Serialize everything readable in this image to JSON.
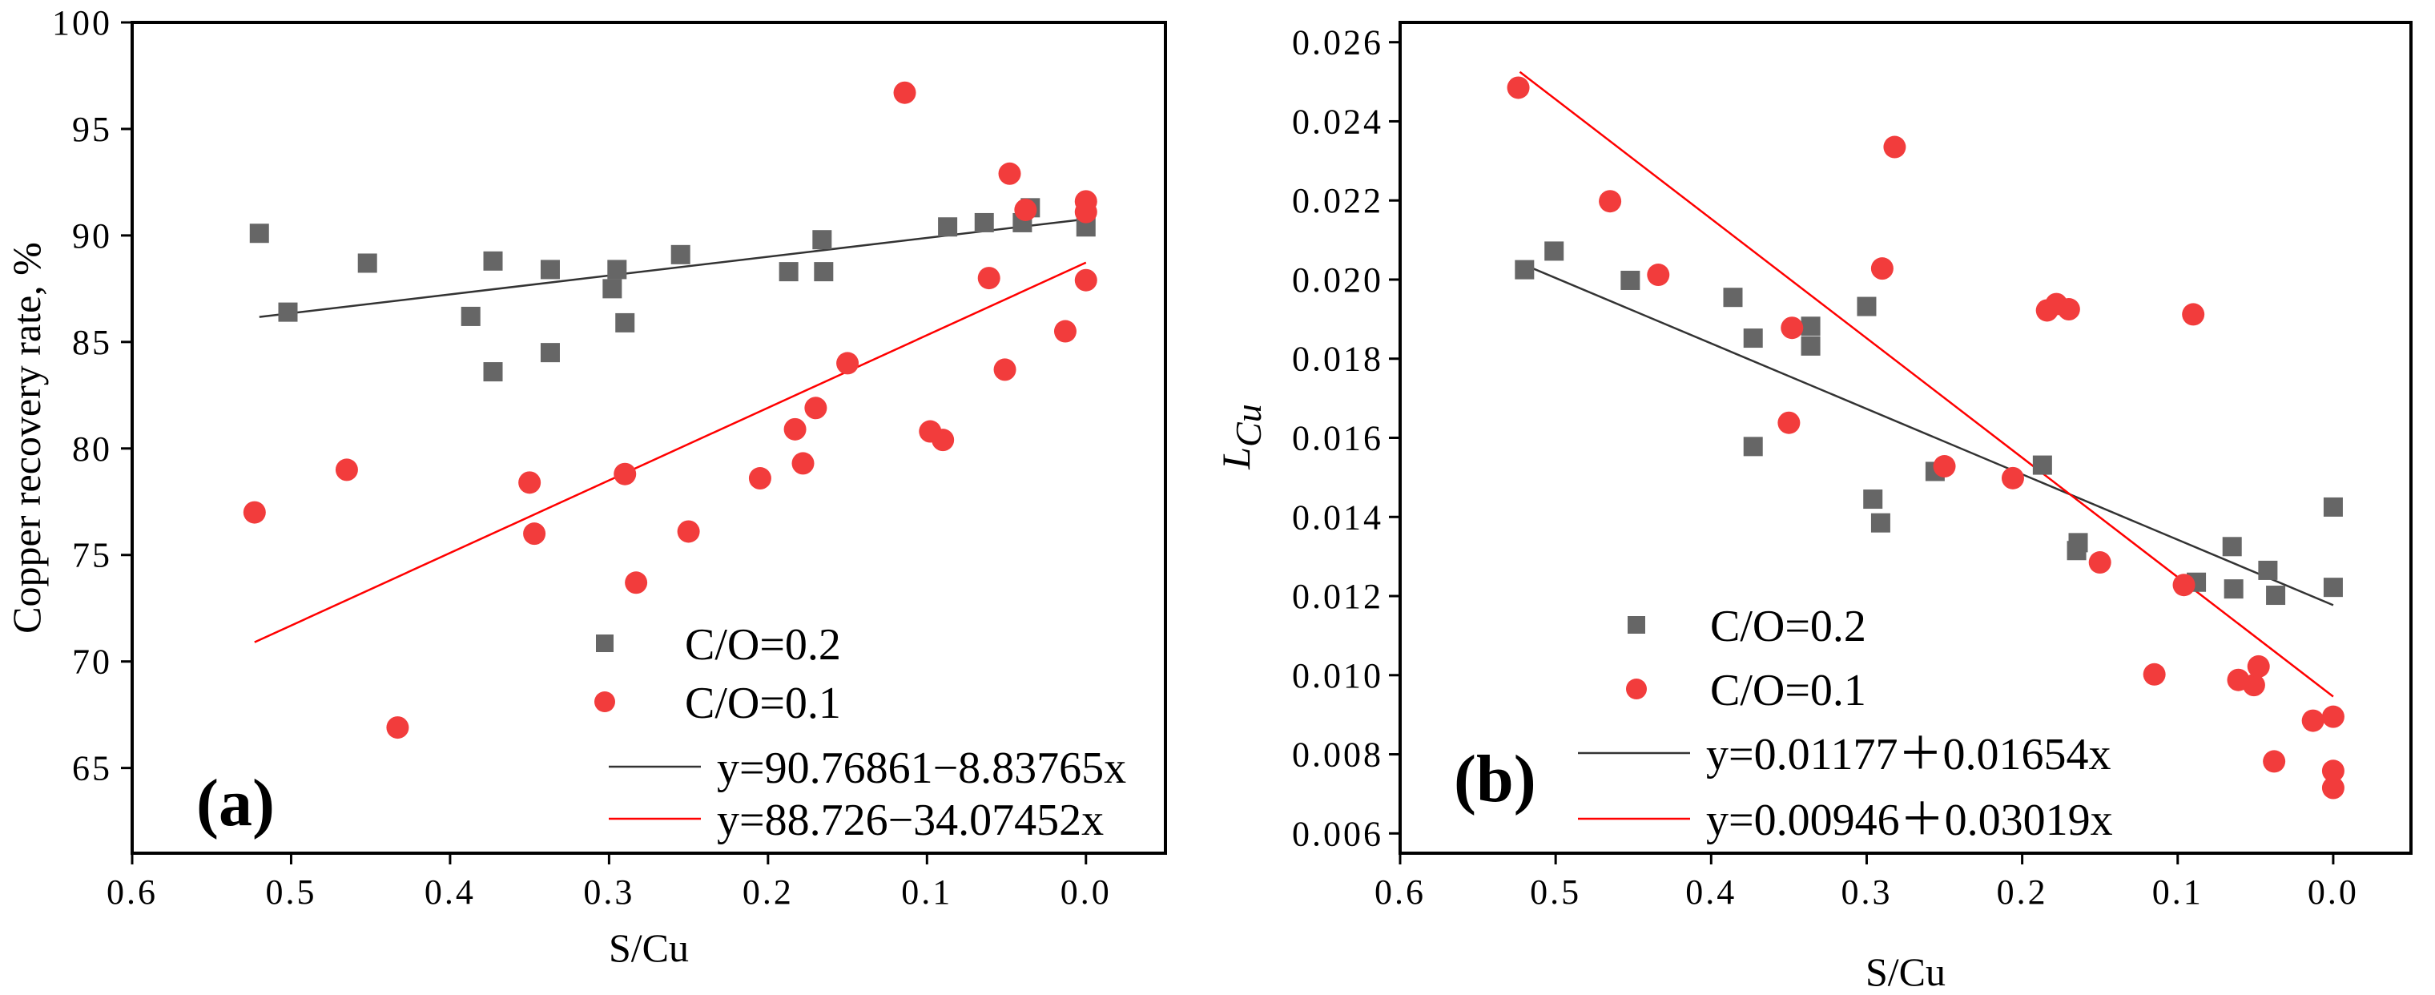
{
  "chart_data": [
    {
      "type": "scatter",
      "panel_label": "(a)",
      "xlabel": "S/Cu",
      "ylabel": "Copper recovery rate, %",
      "xlim": [
        0.6,
        -0.05
      ],
      "ylim": [
        61,
        100
      ],
      "x_reversed": true,
      "xticks": [
        0.6,
        0.5,
        0.4,
        0.3,
        0.2,
        0.1,
        0.0
      ],
      "xtick_labels": [
        "0.6",
        "0.5",
        "0.4",
        "0.3",
        "0.2",
        "0.1",
        "0.0"
      ],
      "yticks": [
        65,
        70,
        75,
        80,
        85,
        90,
        95,
        100
      ],
      "ytick_labels": [
        "65",
        "70",
        "75",
        "80",
        "85",
        "90",
        "95",
        "100"
      ],
      "legend_position": "bottom-right",
      "series": [
        {
          "name": "C/O=0.2",
          "marker": "square",
          "color": "#666666",
          "points": [
            [
              0.52,
              90.1
            ],
            [
              0.502,
              86.4
            ],
            [
              0.452,
              88.7
            ],
            [
              0.387,
              86.2
            ],
            [
              0.373,
              88.8
            ],
            [
              0.373,
              83.6
            ],
            [
              0.337,
              88.4
            ],
            [
              0.337,
              84.5
            ],
            [
              0.298,
              87.5
            ],
            [
              0.295,
              88.4
            ],
            [
              0.29,
              85.9
            ],
            [
              0.255,
              89.1
            ],
            [
              0.187,
              88.3
            ],
            [
              0.166,
              89.8
            ],
            [
              0.165,
              88.3
            ],
            [
              0.087,
              90.4
            ],
            [
              0.064,
              90.6
            ],
            [
              0.04,
              90.6
            ],
            [
              0.035,
              91.3
            ],
            [
              0.0,
              90.4
            ]
          ]
        },
        {
          "name": "C/O=0.1",
          "marker": "circle",
          "color": "#f23c3c",
          "points": [
            [
              0.523,
              77.0
            ],
            [
              0.465,
              79.0
            ],
            [
              0.433,
              66.9
            ],
            [
              0.35,
              78.4
            ],
            [
              0.347,
              76.0
            ],
            [
              0.29,
              78.8
            ],
            [
              0.283,
              73.7
            ],
            [
              0.25,
              76.1
            ],
            [
              0.205,
              78.6
            ],
            [
              0.183,
              80.9
            ],
            [
              0.178,
              79.3
            ],
            [
              0.17,
              81.9
            ],
            [
              0.15,
              84.0
            ],
            [
              0.114,
              96.7
            ],
            [
              0.098,
              80.8
            ],
            [
              0.09,
              80.4
            ],
            [
              0.061,
              88.0
            ],
            [
              0.051,
              83.7
            ],
            [
              0.048,
              92.9
            ],
            [
              0.038,
              91.2
            ],
            [
              0.013,
              85.5
            ],
            [
              0.0,
              91.6
            ],
            [
              0.0,
              91.1
            ],
            [
              0.0,
              87.9
            ]
          ]
        }
      ],
      "fits": [
        {
          "label": "y=90.76861−8.83765x",
          "intercept": 90.76861,
          "slope": -8.83765,
          "x_range": [
            0.52,
            0.0
          ],
          "color": "#333333"
        },
        {
          "label": "y=88.726−34.07452x",
          "intercept": 88.726,
          "slope": -34.07452,
          "x_range": [
            0.523,
            0.0
          ],
          "color": "#ff0000"
        }
      ]
    },
    {
      "type": "scatter",
      "panel_label": "(b)",
      "xlabel": "S/Cu",
      "ylabel_main": "L",
      "ylabel_sub": "Cu",
      "xlim": [
        0.6,
        -0.05
      ],
      "ylim": [
        0.0055,
        0.0265
      ],
      "x_reversed": true,
      "xticks": [
        0.6,
        0.5,
        0.4,
        0.3,
        0.2,
        0.1,
        0.0
      ],
      "xtick_labels": [
        "0.6",
        "0.5",
        "0.4",
        "0.3",
        "0.2",
        "0.1",
        "0.0"
      ],
      "yticks": [
        0.006,
        0.008,
        0.01,
        0.012,
        0.014,
        0.016,
        0.018,
        0.02,
        0.022,
        0.024,
        0.026
      ],
      "ytick_labels": [
        "0.006",
        "0.008",
        "0.010",
        "0.012",
        "0.014",
        "0.016",
        "0.018",
        "0.020",
        "0.022",
        "0.024",
        "0.026"
      ],
      "legend_position": "bottom-left",
      "series": [
        {
          "name": "C/O=0.2",
          "marker": "square",
          "color": "#666666",
          "points": [
            [
              0.52,
              0.02025
            ],
            [
              0.501,
              0.02072
            ],
            [
              0.452,
              0.01998
            ],
            [
              0.386,
              0.01955
            ],
            [
              0.373,
              0.01852
            ],
            [
              0.373,
              0.01578
            ],
            [
              0.336,
              0.01882
            ],
            [
              0.336,
              0.01832
            ],
            [
              0.3,
              0.01932
            ],
            [
              0.296,
              0.01445
            ],
            [
              0.291,
              0.01385
            ],
            [
              0.256,
              0.01515
            ],
            [
              0.187,
              0.01531
            ],
            [
              0.165,
              0.01315
            ],
            [
              0.164,
              0.01335
            ],
            [
              0.088,
              0.01235
            ],
            [
              0.065,
              0.01325
            ],
            [
              0.064,
              0.01218
            ],
            [
              0.042,
              0.01265
            ],
            [
              0.037,
              0.01202
            ],
            [
              0.0,
              0.01425
            ],
            [
              0.0,
              0.01222
            ]
          ]
        },
        {
          "name": "C/O=0.1",
          "marker": "circle",
          "color": "#f23c3c",
          "points": [
            [
              0.524,
              0.02485
            ],
            [
              0.465,
              0.02198
            ],
            [
              0.434,
              0.02012
            ],
            [
              0.35,
              0.01638
            ],
            [
              0.348,
              0.01878
            ],
            [
              0.29,
              0.02028
            ],
            [
              0.282,
              0.02335
            ],
            [
              0.25,
              0.01528
            ],
            [
              0.206,
              0.01498
            ],
            [
              0.184,
              0.01922
            ],
            [
              0.178,
              0.01938
            ],
            [
              0.17,
              0.01925
            ],
            [
              0.15,
              0.01285
            ],
            [
              0.115,
              0.01002
            ],
            [
              0.096,
              0.01228
            ],
            [
              0.09,
              0.01912
            ],
            [
              0.061,
              0.00988
            ],
            [
              0.051,
              0.00975
            ],
            [
              0.048,
              0.01022
            ],
            [
              0.038,
              0.00782
            ],
            [
              0.013,
              0.00885
            ],
            [
              0.0,
              0.00895
            ],
            [
              0.0,
              0.00758
            ],
            [
              0.0,
              0.00715
            ]
          ]
        }
      ],
      "fits": [
        {
          "label": "y=0.01177＋0.01654x",
          "intercept": 0.01177,
          "slope": 0.01654,
          "x_range": [
            0.52,
            0.0
          ],
          "color": "#333333"
        },
        {
          "label": "y=0.00946＋0.03019x",
          "intercept": 0.00946,
          "slope": 0.03019,
          "x_range": [
            0.523,
            0.0
          ],
          "color": "#ff0000"
        }
      ]
    }
  ]
}
